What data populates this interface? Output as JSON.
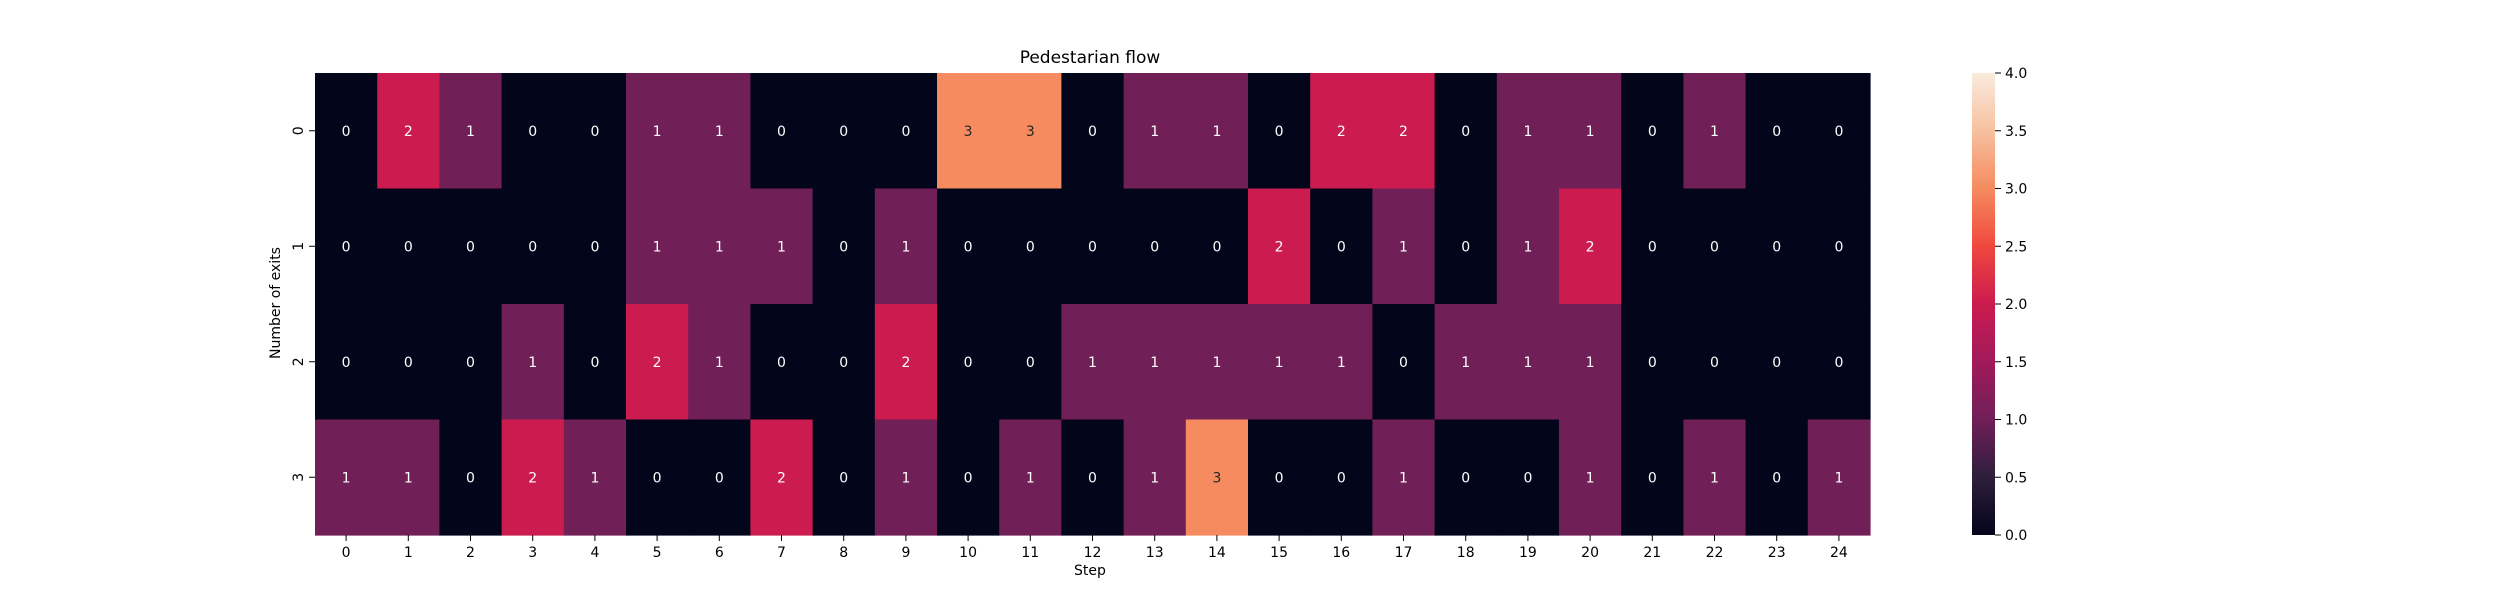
{
  "chart_data": {
    "type": "heatmap",
    "title": "Pedestarian flow",
    "xlabel": "Step",
    "ylabel": "Number of exits",
    "x": [
      "0",
      "1",
      "2",
      "3",
      "4",
      "5",
      "6",
      "7",
      "8",
      "9",
      "10",
      "11",
      "12",
      "13",
      "14",
      "15",
      "16",
      "17",
      "18",
      "19",
      "20",
      "21",
      "22",
      "23",
      "24"
    ],
    "y": [
      "0",
      "1",
      "2",
      "3"
    ],
    "values": [
      [
        0,
        2,
        1,
        0,
        0,
        1,
        1,
        0,
        0,
        0,
        3,
        3,
        0,
        1,
        1,
        0,
        2,
        2,
        0,
        1,
        1,
        0,
        1,
        0,
        0
      ],
      [
        0,
        0,
        0,
        0,
        0,
        1,
        1,
        1,
        0,
        1,
        0,
        0,
        0,
        0,
        0,
        2,
        0,
        1,
        0,
        1,
        2,
        0,
        0,
        0,
        0
      ],
      [
        0,
        0,
        0,
        1,
        0,
        2,
        1,
        0,
        0,
        2,
        0,
        0,
        1,
        1,
        1,
        1,
        1,
        0,
        1,
        1,
        1,
        0,
        0,
        0,
        0
      ],
      [
        1,
        1,
        0,
        2,
        1,
        0,
        0,
        2,
        0,
        1,
        0,
        1,
        0,
        1,
        3,
        0,
        0,
        1,
        0,
        0,
        1,
        0,
        1,
        0,
        1
      ]
    ],
    "colorbar": {
      "range": [
        0,
        4
      ],
      "ticks": [
        "0.0",
        "0.5",
        "1.0",
        "1.5",
        "2.0",
        "2.5",
        "3.0",
        "3.5",
        "4.0"
      ],
      "colormap": "rocket"
    },
    "annotations": true,
    "grid": false
  }
}
